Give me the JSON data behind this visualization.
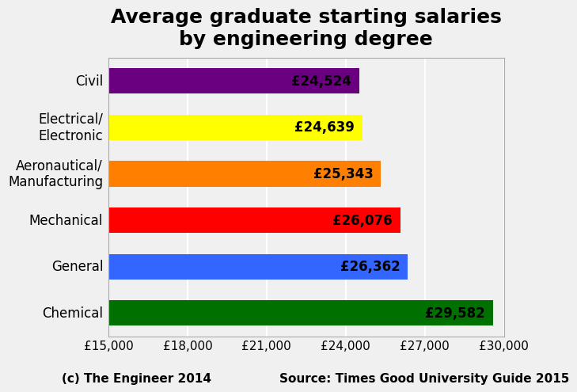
{
  "title": "Average graduate starting salaries\nby engineering degree",
  "categories": [
    "Chemical",
    "General",
    "Mechanical",
    "Aeronautical/\nManufacturing",
    "Electrical/\nElectronic",
    "Civil"
  ],
  "values": [
    29582,
    26362,
    26076,
    25343,
    24639,
    24524
  ],
  "labels": [
    "£29,582",
    "£26,362",
    "£26,076",
    "£25,343",
    "£24,639",
    "£24,524"
  ],
  "colors": [
    "#007000",
    "#3366ff",
    "#ff0000",
    "#ff8000",
    "#ffff00",
    "#6a0080"
  ],
  "xlim": [
    15000,
    30000
  ],
  "xticks": [
    15000,
    18000,
    21000,
    24000,
    27000,
    30000
  ],
  "xtick_labels": [
    "£15,000",
    "£18,000",
    "£21,000",
    "£24,000",
    "£27,000",
    "£30,000"
  ],
  "footer_left": "(c) The Engineer 2014",
  "footer_right": "Source: Times Good University Guide 2015",
  "background_color": "#f0f0f0",
  "title_fontsize": 18,
  "label_fontsize": 12,
  "tick_fontsize": 11,
  "footer_fontsize": 11,
  "bar_height": 0.55
}
